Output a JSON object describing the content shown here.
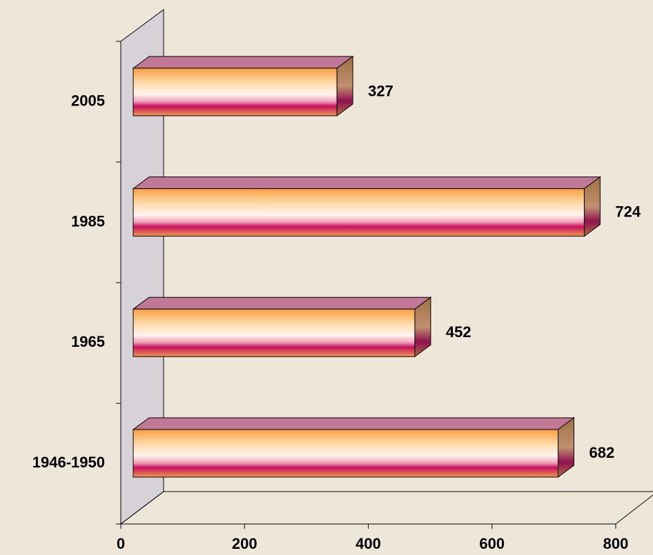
{
  "chart_data": {
    "type": "bar3d-horizontal",
    "categories": [
      "1946-1950",
      "1965",
      "1985",
      "2005"
    ],
    "values": [
      682,
      452,
      724,
      327
    ],
    "xlim": [
      0,
      800
    ],
    "xticks": [
      0,
      200,
      400,
      600,
      800
    ]
  }
}
